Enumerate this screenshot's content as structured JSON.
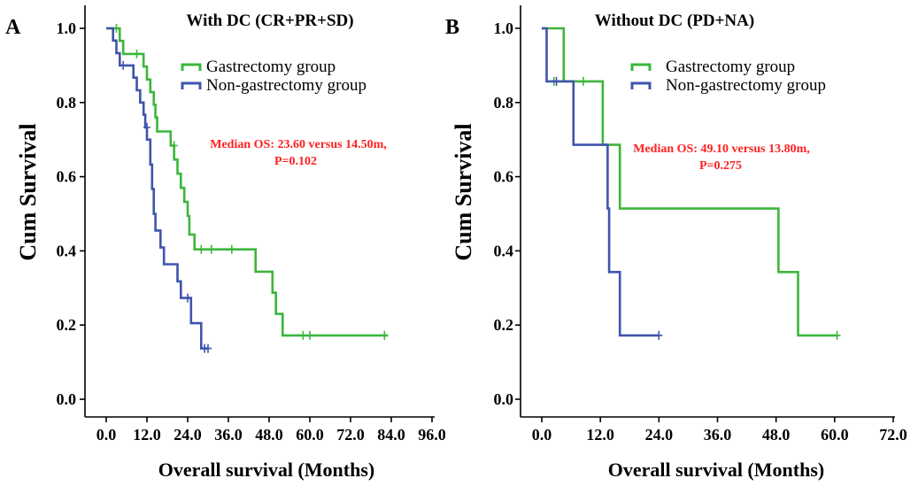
{
  "colors": {
    "gastrectomy": "#3cb63c",
    "non_gastrectomy": "#3f54ad",
    "annotation": "#ff2020"
  },
  "chart_data": [
    {
      "type": "line",
      "panel": "A",
      "title": "With DC (CR+PR+SD)",
      "xlabel": "Overall survival (Months)",
      "ylabel": "Cum Survival",
      "xlim": [
        0,
        96
      ],
      "ylim": [
        0,
        1.0
      ],
      "xticks": [
        "0.0",
        "12.0",
        "24.0",
        "36.0",
        "48.0",
        "60.0",
        "72.0",
        "84.0",
        "96.0"
      ],
      "yticks": [
        "0.0",
        "0.2",
        "0.4",
        "0.6",
        "0.8",
        "1.0"
      ],
      "legend": [
        "Gastrectomy group",
        "Non-gastrectomy group"
      ],
      "annotation": [
        "Median OS: 23.60 versus 14.50m,",
        "P=0.102"
      ],
      "series": [
        {
          "name": "Gastrectomy group",
          "color": "#3cb63c",
          "steps": [
            [
              0,
              1.0
            ],
            [
              4,
              1.0
            ],
            [
              4,
              0.966
            ],
            [
              5,
              0.966
            ],
            [
              5,
              0.931
            ],
            [
              11,
              0.931
            ],
            [
              11,
              0.897
            ],
            [
              12,
              0.897
            ],
            [
              12,
              0.862
            ],
            [
              13,
              0.862
            ],
            [
              13,
              0.828
            ],
            [
              14,
              0.828
            ],
            [
              14,
              0.794
            ],
            [
              14.5,
              0.794
            ],
            [
              14.5,
              0.76
            ],
            [
              15,
              0.76
            ],
            [
              15,
              0.722
            ],
            [
              19,
              0.722
            ],
            [
              19,
              0.684
            ],
            [
              20,
              0.684
            ],
            [
              20,
              0.646
            ],
            [
              21,
              0.646
            ],
            [
              21,
              0.608
            ],
            [
              22,
              0.608
            ],
            [
              22,
              0.57
            ],
            [
              23,
              0.57
            ],
            [
              23,
              0.532
            ],
            [
              24,
              0.532
            ],
            [
              24,
              0.494
            ],
            [
              24.5,
              0.494
            ],
            [
              24.5,
              0.444
            ],
            [
              26,
              0.444
            ],
            [
              26,
              0.404
            ],
            [
              44,
              0.404
            ],
            [
              44,
              0.344
            ],
            [
              49,
              0.344
            ],
            [
              49,
              0.287
            ],
            [
              50,
              0.287
            ],
            [
              50,
              0.23
            ],
            [
              52,
              0.23
            ],
            [
              52,
              0.172
            ],
            [
              83,
              0.172
            ]
          ],
          "censored": [
            [
              3,
              1.0
            ],
            [
              9,
              0.931
            ],
            [
              20,
              0.684
            ],
            [
              28,
              0.404
            ],
            [
              31,
              0.404
            ],
            [
              37,
              0.404
            ],
            [
              58,
              0.172
            ],
            [
              60,
              0.172
            ],
            [
              82,
              0.172
            ]
          ]
        },
        {
          "name": "Non-gastrectomy group",
          "color": "#3f54ad",
          "steps": [
            [
              0,
              1.0
            ],
            [
              2,
              1.0
            ],
            [
              2,
              0.967
            ],
            [
              3,
              0.967
            ],
            [
              3,
              0.933
            ],
            [
              4,
              0.933
            ],
            [
              4,
              0.9
            ],
            [
              8,
              0.9
            ],
            [
              8,
              0.867
            ],
            [
              9,
              0.867
            ],
            [
              9,
              0.833
            ],
            [
              10,
              0.833
            ],
            [
              10,
              0.8
            ],
            [
              11,
              0.8
            ],
            [
              11,
              0.767
            ],
            [
              11.5,
              0.767
            ],
            [
              11.5,
              0.733
            ],
            [
              12,
              0.733
            ],
            [
              12,
              0.7
            ],
            [
              13,
              0.7
            ],
            [
              13,
              0.633
            ],
            [
              13.5,
              0.633
            ],
            [
              13.5,
              0.567
            ],
            [
              14,
              0.567
            ],
            [
              14,
              0.5
            ],
            [
              14.5,
              0.5
            ],
            [
              14.5,
              0.455
            ],
            [
              16,
              0.455
            ],
            [
              16,
              0.409
            ],
            [
              17,
              0.409
            ],
            [
              17,
              0.364
            ],
            [
              21,
              0.364
            ],
            [
              21,
              0.318
            ],
            [
              22,
              0.318
            ],
            [
              22,
              0.273
            ],
            [
              25,
              0.273
            ],
            [
              25,
              0.205
            ],
            [
              28,
              0.205
            ],
            [
              28,
              0.137
            ],
            [
              30,
              0.137
            ]
          ],
          "censored": [
            [
              5,
              0.9
            ],
            [
              12,
              0.733
            ],
            [
              24,
              0.273
            ],
            [
              29,
              0.137
            ],
            [
              30,
              0.137
            ]
          ]
        }
      ]
    },
    {
      "type": "line",
      "panel": "B",
      "title": "Without DC (PD+NA)",
      "xlabel": "Overall survival (Months)",
      "ylabel": "Cum Survival",
      "xlim": [
        0,
        72
      ],
      "ylim": [
        0,
        1.0
      ],
      "xticks": [
        "0.0",
        "12.0",
        "24.0",
        "36.0",
        "48.0",
        "60.0",
        "72.0"
      ],
      "yticks": [
        "0.0",
        "0.2",
        "0.4",
        "0.6",
        "0.8",
        "1.0"
      ],
      "legend": [
        "Gastrectomy group",
        "Non-gastrectomy group"
      ],
      "annotation": [
        "Median OS: 49.10 versus 13.80m,",
        "P=0.275"
      ],
      "series": [
        {
          "name": "Gastrectomy group",
          "color": "#3cb63c",
          "steps": [
            [
              0,
              1.0
            ],
            [
              4.5,
              1.0
            ],
            [
              4.5,
              0.857
            ],
            [
              12.5,
              0.857
            ],
            [
              12.5,
              0.686
            ],
            [
              16,
              0.686
            ],
            [
              16,
              0.514
            ],
            [
              48.5,
              0.514
            ],
            [
              48.5,
              0.343
            ],
            [
              52.5,
              0.343
            ],
            [
              52.5,
              0.172
            ],
            [
              60.5,
              0.172
            ]
          ],
          "censored": [
            [
              2.5,
              0.857
            ],
            [
              8.5,
              0.857
            ],
            [
              60.5,
              0.172
            ]
          ]
        },
        {
          "name": "Non-gastrectomy group",
          "color": "#3f54ad",
          "steps": [
            [
              0,
              1.0
            ],
            [
              1,
              1.0
            ],
            [
              1,
              0.857
            ],
            [
              6.5,
              0.857
            ],
            [
              6.5,
              0.686
            ],
            [
              13.5,
              0.686
            ],
            [
              13.5,
              0.514
            ],
            [
              13.8,
              0.514
            ],
            [
              13.8,
              0.343
            ],
            [
              16,
              0.343
            ],
            [
              16,
              0.172
            ],
            [
              24,
              0.172
            ]
          ],
          "censored": [
            [
              3,
              0.857
            ],
            [
              24,
              0.172
            ]
          ]
        }
      ]
    }
  ]
}
